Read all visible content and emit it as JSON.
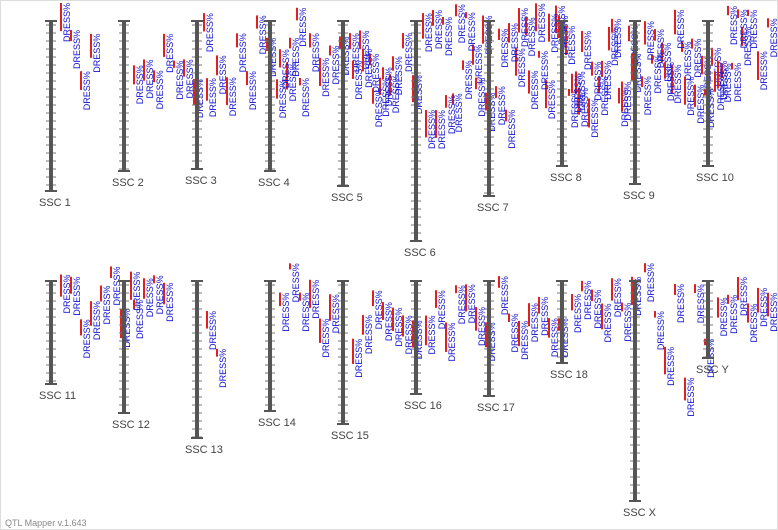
{
  "chromosomes": [
    {
      "label": "SSC 1",
      "qtls": [
        "DRESS%",
        "DRESS%",
        "DRESS%",
        "DRESS%"
      ]
    },
    {
      "label": "SSC 2",
      "qtls": [
        "DRESS%",
        "DRESS%",
        "DRESS%",
        "DRESS%",
        "DRESS%",
        "DRESS%",
        "DRESS%",
        "DRESS%"
      ]
    },
    {
      "label": "SSC 3",
      "qtls": [
        "DRESS%",
        "DRESS%",
        "DRESS%",
        "DRESS%",
        "DRESS%",
        "DRESS%",
        "DRESS%",
        "DRESS%",
        "DRESS%",
        "DRESS%"
      ]
    },
    {
      "label": "SSC 4",
      "qtls": [
        "DRESS%",
        "DRESS%",
        "DRESS%",
        "DRESS%",
        "DRESS%",
        "DRESS%",
        "DRESS%",
        "DRESS%",
        "DRESS%",
        "DRESS%",
        "DRESS%",
        "DRESS%"
      ]
    },
    {
      "label": "SSC 5",
      "qtls": [
        "DRESS%",
        "DRESS%",
        "DRESS%",
        "DRESS%",
        "DRESS%",
        "DRESS%",
        "DRESS%",
        "DRESS%",
        "DRESS%",
        "DRESS%",
        "DRESS%",
        "DRESS%",
        "DRESS%",
        "DRESS%"
      ]
    },
    {
      "label": "SSC 6",
      "qtls": [
        "DRESS%",
        "DRESS%",
        "DRESS%",
        "DRESS%",
        "DRESS%",
        "DRESS%",
        "DRESS%",
        "DRESS%",
        "DRESS%",
        "DRESS%",
        "DRESS%",
        "DRESS%",
        "DRESS%",
        "DRESS%",
        "DRESS%",
        "DRESS%"
      ]
    },
    {
      "label": "SSC 7",
      "qtls": [
        "DRESS%",
        "DRESS%",
        "DRESS%",
        "DRESS%",
        "DRESS%",
        "DRESS%",
        "DRESS%",
        "DRESS%",
        "DRESS%",
        "DRESS%",
        "DRESS%",
        "DRESS%",
        "DRESS%",
        "DRESS%"
      ]
    },
    {
      "label": "SSC 8",
      "qtls": [
        "DRESS%",
        "DRESS%",
        "DRESS%",
        "DRESS%",
        "DRESS%",
        "DRESS%",
        "DRESS%",
        "DRESS%",
        "DRESS%",
        "DRESS%",
        "DRESS%",
        "DRESS%",
        "DRESS%",
        "DRESS%",
        "DRESS%",
        "DRESS%",
        "DRESS%",
        "DRESS%"
      ]
    },
    {
      "label": "SSC 9",
      "qtls": [
        "DRESS%",
        "DRESS%",
        "DRESS%",
        "DRESS%",
        "DRESS%",
        "DRESS%",
        "DRESS%",
        "DRESS%"
      ]
    },
    {
      "label": "SSC 10",
      "qtls": [
        "DRESS%",
        "DRESS%",
        "DRESS%",
        "DRESS%",
        "DRESS%",
        "DRESS%",
        "DRESS%",
        "DRESS%",
        "DRESS%",
        "DRESS%",
        "DRESS%",
        "DRESS%"
      ]
    },
    {
      "label": "SSC 11",
      "qtls": [
        "DRESS%",
        "DRESS%",
        "DRESS%",
        "DRESS%",
        "DRESS%",
        "DRESS%",
        "DRESS%",
        "DRESS%"
      ]
    },
    {
      "label": "SSC 12",
      "qtls": [
        "DRESS%",
        "DRESS%",
        "DRESS%",
        "DRESS%"
      ]
    },
    {
      "label": "SSC 13",
      "qtls": [
        "DRESS%",
        "DRESS%"
      ]
    },
    {
      "label": "SSC 14",
      "qtls": [
        "DRESS%",
        "DRESS%",
        "DRESS%",
        "DRESS%",
        "DRESS%",
        "DRESS%"
      ]
    },
    {
      "label": "SSC 15",
      "qtls": [
        "DRESS%",
        "DRESS%",
        "DRESS%",
        "DRESS%",
        "DRESS%",
        "DRESS%",
        "DRESS%"
      ]
    },
    {
      "label": "SSC 16",
      "qtls": [
        "DRESS%",
        "DRESS%",
        "DRESS%",
        "DRESS%",
        "DRESS%",
        "DRESS%",
        "DRESS%"
      ]
    },
    {
      "label": "SSC 17",
      "qtls": [
        "DRESS%",
        "DRESS%",
        "DRESS%",
        "DRESS%",
        "DRESS%",
        "DRESS%",
        "DRESS%"
      ]
    },
    {
      "label": "SSC 18",
      "qtls": [
        "DRESS%",
        "DRESS%",
        "DRESS%",
        "DRESS%",
        "DRESS%",
        "DRESS%",
        "DRESS%"
      ]
    },
    {
      "label": "SSC X",
      "qtls": [
        "DRESS%",
        "DRESS%",
        "DRESS%",
        "DRESS%",
        "DRESS%",
        "DRESS%",
        "DRESS%"
      ]
    },
    {
      "label": "SSC Y",
      "qtls": [
        "DRESS%",
        "DRESS%",
        "DRESS%",
        "DRESS%",
        "DRESS%",
        "DRESS%",
        "DRESS%"
      ]
    }
  ],
  "footer": "QTL Mapper v.1.643"
}
